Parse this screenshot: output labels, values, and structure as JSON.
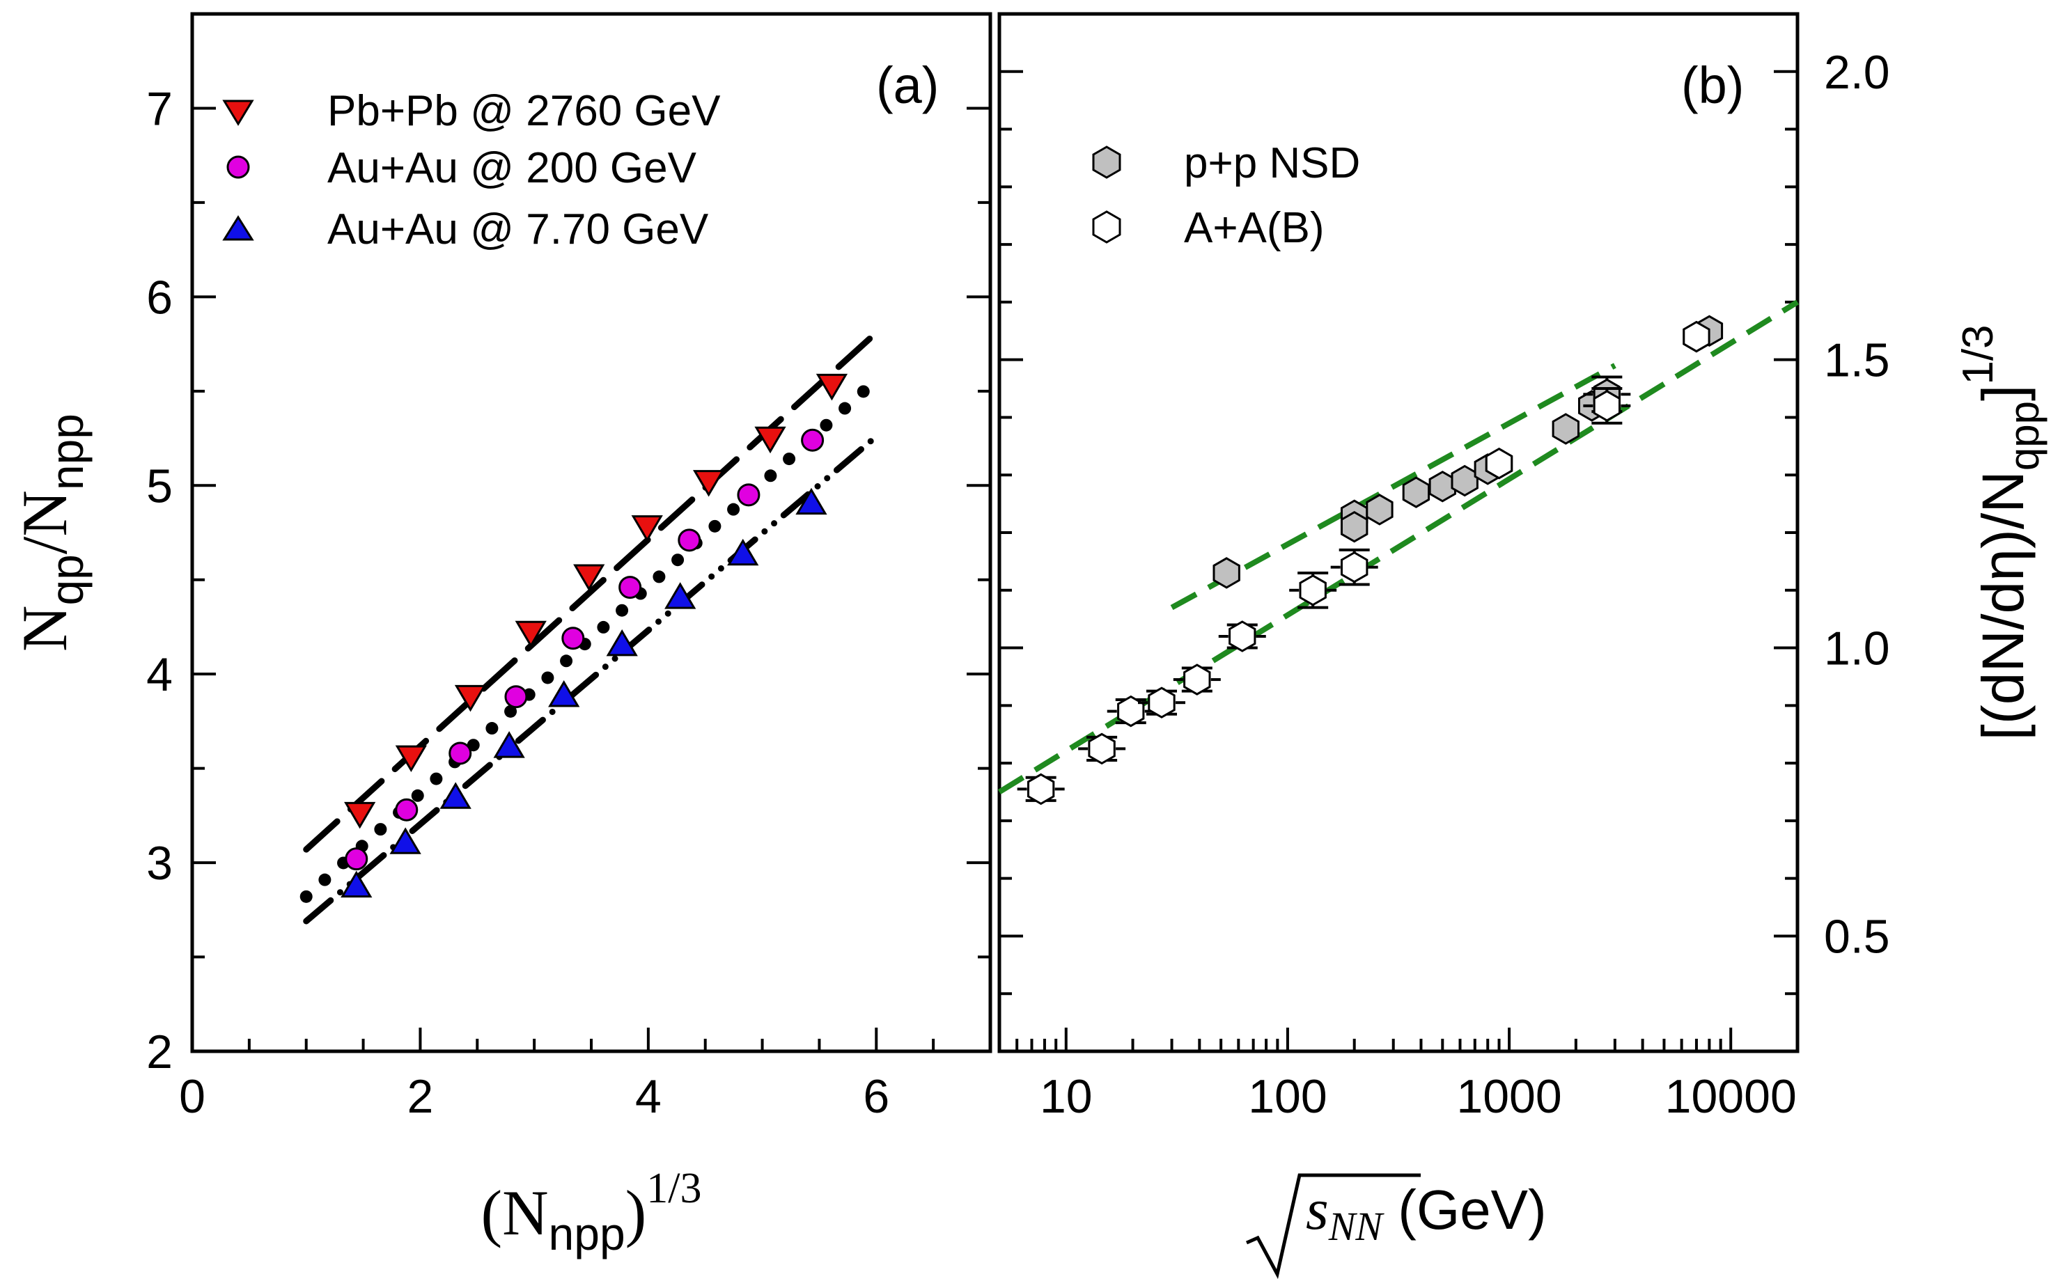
{
  "chart_data": [
    {
      "panel": "(a)",
      "type": "scatter",
      "xlabel": {
        "base": "(N",
        "sub": "npp",
        "close": ")",
        "sup": "1/3"
      },
      "ylabel": {
        "a": "N",
        "a_sub": "qp",
        "mid": "/N",
        "b_sub": "npp"
      },
      "xlim": [
        0,
        7
      ],
      "ylim": [
        2,
        7.5
      ],
      "x_ticks": [
        0,
        2,
        4,
        6
      ],
      "y_ticks": [
        2,
        3,
        4,
        5,
        6,
        7
      ],
      "series": [
        {
          "name": "Pb+Pb @ 2760  GeV",
          "marker": "triangle-down",
          "color": "#e8100f",
          "x": [
            1.47,
            1.92,
            2.44,
            2.97,
            3.48,
            3.99,
            4.53,
            5.07,
            5.61
          ],
          "y": [
            3.25,
            3.55,
            3.87,
            4.21,
            4.51,
            4.77,
            5.01,
            5.24,
            5.52
          ]
        },
        {
          "name": "Au+Au @ 200   GeV",
          "marker": "circle",
          "color": "#e000e0",
          "x": [
            1.44,
            1.88,
            2.35,
            2.84,
            3.34,
            3.84,
            4.36,
            4.88,
            5.44
          ],
          "y": [
            3.02,
            3.28,
            3.58,
            3.88,
            4.19,
            4.46,
            4.71,
            4.95,
            5.24
          ]
        },
        {
          "name": "Au+Au @ 7.70  GeV",
          "marker": "triangle-up",
          "color": "#1010e8",
          "x": [
            1.44,
            1.87,
            2.31,
            2.78,
            3.26,
            3.77,
            4.28,
            4.83,
            5.43
          ],
          "y": [
            2.88,
            3.11,
            3.35,
            3.62,
            3.89,
            4.16,
            4.41,
            4.64,
            4.91
          ]
        }
      ],
      "fits": [
        {
          "style": "dashed",
          "x": [
            1.0,
            6.0
          ],
          "y": [
            3.07,
            5.81
          ]
        },
        {
          "style": "dotted",
          "x": [
            1.0,
            6.0
          ],
          "y": [
            2.82,
            5.56
          ]
        },
        {
          "style": "dash-dot-dot",
          "x": [
            1.0,
            6.0
          ],
          "y": [
            2.69,
            5.26
          ]
        }
      ]
    },
    {
      "panel": "(b)",
      "type": "scatter",
      "xscale": "log",
      "xlabel": {
        "sym": "s",
        "sub": "NN",
        "unit": " (GeV)"
      },
      "ylabel": {
        "text": "[(dN/dη)/N",
        "sub": "qpp",
        "close": "]",
        "sup": "1/3"
      },
      "xlim": [
        5,
        20000
      ],
      "ylim": [
        0.3,
        2.1
      ],
      "x_ticks": [
        10,
        100,
        1000,
        10000
      ],
      "x_tick_labels": [
        "10",
        "100",
        "1000",
        "10000"
      ],
      "y_ticks": [
        0.5,
        1.0,
        1.5,
        2.0
      ],
      "y_tick_labels": [
        "0.5",
        "1.0",
        "1.5",
        "2.0"
      ],
      "series": [
        {
          "name": "p+p NSD",
          "marker": "hexagon-filled",
          "color": "#c0c0c0",
          "x": [
            53,
            200,
            200,
            260,
            380,
            500,
            630,
            800,
            900,
            1800,
            2360,
            2760,
            7000,
            8000
          ],
          "y": [
            1.13,
            1.23,
            1.21,
            1.24,
            1.27,
            1.28,
            1.29,
            1.31,
            1.32,
            1.38,
            1.42,
            1.44,
            1.54,
            1.55
          ],
          "err": [
            0,
            0,
            0,
            0,
            0,
            0,
            0,
            0,
            0,
            0,
            0,
            0.03,
            0,
            0
          ]
        },
        {
          "name": "A+A(B)",
          "marker": "hexagon-open",
          "color": "#ffffff",
          "x": [
            7.7,
            14.5,
            19.6,
            27,
            39,
            62.4,
            130,
            200,
            900,
            2760,
            7000
          ],
          "y": [
            0.755,
            0.825,
            0.89,
            0.905,
            0.945,
            1.02,
            1.1,
            1.14,
            1.32,
            1.42,
            1.54
          ],
          "err": [
            0.02,
            0.02,
            0.02,
            0.02,
            0.02,
            0.02,
            0.03,
            0.03,
            0,
            0.03,
            0
          ]
        }
      ],
      "fits": [
        {
          "style": "dashed",
          "x": [
            5,
            20000
          ],
          "y": [
            0.75,
            1.6
          ]
        },
        {
          "style": "dashed",
          "x": [
            30,
            3000
          ],
          "y": [
            1.07,
            1.49
          ]
        }
      ]
    }
  ]
}
